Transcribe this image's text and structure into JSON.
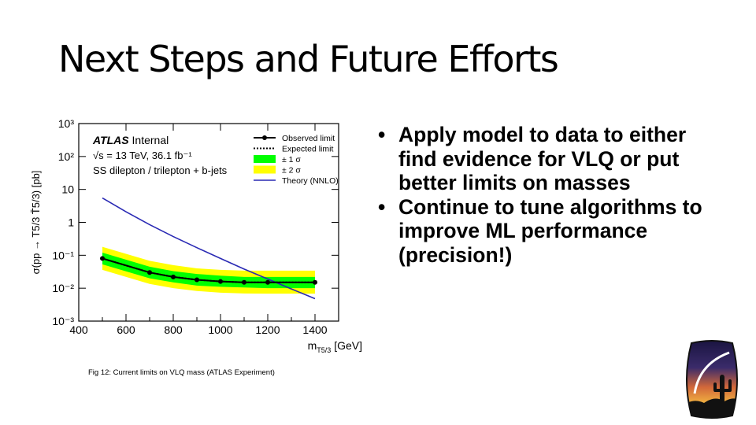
{
  "slide": {
    "title": "Next Steps and Future Efforts",
    "caption": "Fig 12: Current limits on VLQ mass (ATLAS Experiment)",
    "bullets": [
      "Apply model to data to either find evidence for VLQ or put better limits on masses",
      "Continue to tune algorithms to improve ML performance (precision!)"
    ]
  },
  "chart_data": {
    "type": "line",
    "y_scale": "log",
    "xlim": [
      400,
      1500
    ],
    "ylim": [
      0.001,
      1000
    ],
    "x_ticks": [
      400,
      600,
      800,
      1000,
      1200,
      1400
    ],
    "y_ticks": [
      {
        "value": 0.001,
        "label": "10⁻³"
      },
      {
        "value": 0.01,
        "label": "10⁻²"
      },
      {
        "value": 0.1,
        "label": "10⁻¹"
      },
      {
        "value": 1,
        "label": "1"
      },
      {
        "value": 10,
        "label": "10"
      },
      {
        "value": 100,
        "label": "10²"
      },
      {
        "value": 1000,
        "label": "10³"
      }
    ],
    "xlabel": "m",
    "xlabel_sub": "T5/3",
    "xlabel_unit": "[GeV]",
    "ylabel": "σ(pp → T5/3 T̄5/3) [pb]",
    "annotations": {
      "atlas": "ATLAS",
      "internal": "Internal",
      "energy": "√s = 13 TeV, 36.1 fb⁻¹",
      "channel": "SS dilepton / trilepton + b-jets"
    },
    "series": [
      {
        "name": "Observed limit",
        "x": [
          500,
          700,
          800,
          900,
          1000,
          1100,
          1200,
          1400
        ],
        "y": [
          0.08,
          0.03,
          0.022,
          0.018,
          0.016,
          0.015,
          0.015,
          0.015
        ],
        "color": "#000000"
      },
      {
        "name": "Expected limit",
        "x": [
          500,
          700,
          800,
          900,
          1000,
          1100,
          1200,
          1400
        ],
        "y": [
          0.08,
          0.03,
          0.022,
          0.018,
          0.016,
          0.015,
          0.015,
          0.015
        ],
        "color": "#000000"
      },
      {
        "name": "± 1 σ",
        "x": [
          500,
          700,
          800,
          900,
          1000,
          1100,
          1200,
          1400
        ],
        "lower": [
          0.053,
          0.02,
          0.015,
          0.012,
          0.011,
          0.0105,
          0.01,
          0.01
        ],
        "upper": [
          0.12,
          0.045,
          0.033,
          0.027,
          0.024,
          0.022,
          0.022,
          0.022
        ],
        "color": "#00ff00"
      },
      {
        "name": "± 2 σ",
        "x": [
          500,
          700,
          800,
          900,
          1000,
          1100,
          1200,
          1400
        ],
        "lower": [
          0.036,
          0.0135,
          0.01,
          0.0082,
          0.0073,
          0.0069,
          0.0068,
          0.0068
        ],
        "upper": [
          0.18,
          0.068,
          0.05,
          0.04,
          0.036,
          0.034,
          0.034,
          0.034
        ],
        "color": "#ffff00"
      },
      {
        "name": "Theory (NNLO)",
        "x": [
          500,
          600,
          700,
          800,
          900,
          1000,
          1100,
          1200,
          1300,
          1400
        ],
        "y": [
          5.5,
          2.1,
          0.85,
          0.37,
          0.17,
          0.08,
          0.038,
          0.019,
          0.0095,
          0.0048
        ],
        "color": "#2a2ab4"
      }
    ]
  }
}
